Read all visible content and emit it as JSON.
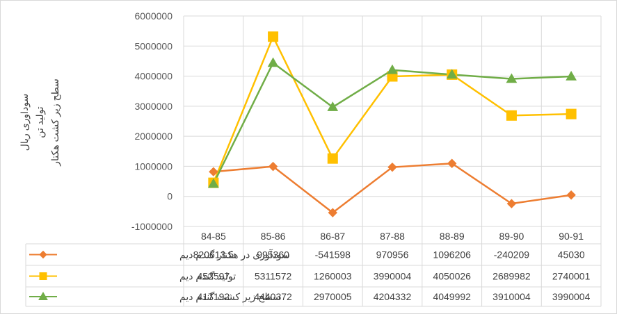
{
  "chart_data": {
    "type": "line",
    "categories": [
      "84-85",
      "85-86",
      "86-87",
      "87-88",
      "88-89",
      "89-90",
      "90-91"
    ],
    "ylabel_lines": [
      "سوداوری ریال",
      "تولید تن",
      "سطح زیر کشت هکتار"
    ],
    "ylim": [
      -1000000,
      6000000
    ],
    "yticks": [
      -1000000,
      0,
      1000000,
      2000000,
      3000000,
      4000000,
      5000000,
      6000000
    ],
    "ytick_labels": [
      "-1000000",
      "0",
      "1000000",
      "2000000",
      "3000000",
      "4000000",
      "5000000",
      "6000000"
    ],
    "grid": true,
    "legend": "data-table-bottom",
    "series": [
      {
        "name": "سودآوری در هکتار گندم دیم",
        "color": "#ED7D31",
        "marker": "diamond",
        "values": [
          820613.5,
          995360,
          -541598,
          970956,
          1096206,
          -240209,
          45030
        ],
        "value_labels": [
          "820613.5",
          "995360",
          "-541598",
          "970956",
          "1096206",
          "-240209",
          "45030"
        ]
      },
      {
        "name": "تولید گندم دیم",
        "color": "#FFC000",
        "marker": "square",
        "values": [
          452597,
          5311572,
          1260003,
          3990004,
          4050026,
          2689982,
          2740001
        ],
        "value_labels": [
          "452597",
          "5311572",
          "1260003",
          "3990004",
          "4050026",
          "2689982",
          "2740001"
        ]
      },
      {
        "name": "سطح زیر کشت گندم دیم",
        "color": "#70AD47",
        "marker": "triangle",
        "values": [
          417192,
          4440372,
          2970005,
          4204332,
          4049992,
          3910004,
          3990004
        ],
        "value_labels": [
          "417192",
          "4440372",
          "2970005",
          "4204332",
          "4049992",
          "3910004",
          "3990004"
        ]
      }
    ]
  }
}
